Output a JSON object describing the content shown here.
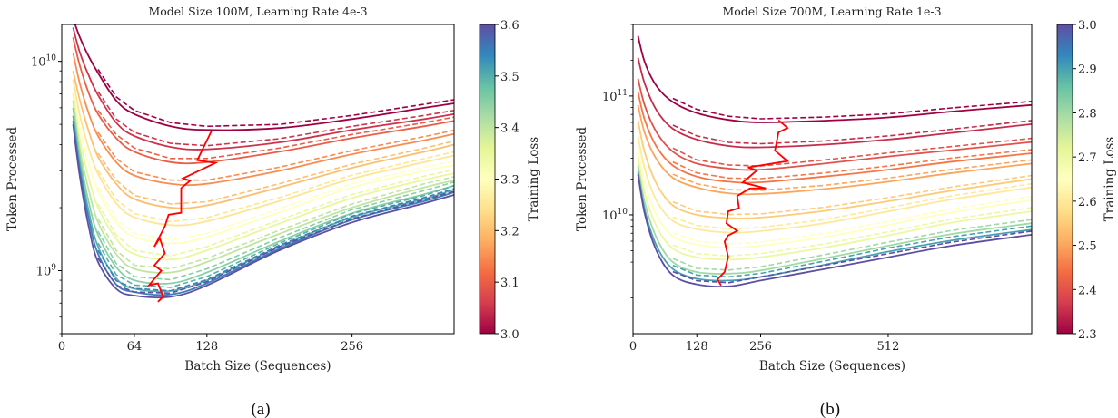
{
  "chart_data": [
    {
      "type": "line",
      "panel_caption": "(a)",
      "title": "Model Size 100M, Learning Rate 4e-3",
      "xlabel": "Batch Size (Sequences)",
      "ylabel": "Token Processed",
      "xlim": [
        0,
        346
      ],
      "ylim": [
        500000000.0,
        15000000000.0
      ],
      "yscale": "log",
      "grid": false,
      "xticks": [
        0,
        64,
        128,
        256
      ],
      "xtick_labels": [
        "0",
        "64",
        "128",
        "256"
      ],
      "yticks": [
        1000000000.0,
        10000000000.0
      ],
      "ytick_labels": [
        {
          "base": "10",
          "exp": "9"
        },
        {
          "base": "10",
          "exp": "10"
        }
      ],
      "colorbar": {
        "label": "Training Loss",
        "colormap": "Spectral",
        "range": [
          3.0,
          3.6
        ],
        "ticks": [
          "3.0",
          "3.1",
          "3.2",
          "3.3",
          "3.4",
          "3.5",
          "3.6"
        ]
      },
      "x": [
        10,
        16,
        24,
        32,
        48,
        64,
        96,
        128,
        192,
        256,
        320,
        346
      ],
      "series": [
        {
          "loss": 3.0,
          "values": [
            16000000000.0,
            13000000000.0,
            10500000000.0,
            8800000000.0,
            6500000000.0,
            5600000000.0,
            4900000000.0,
            4700000000.0,
            4800000000.0,
            5300000000.0,
            6000000000.0,
            6300000000.0
          ]
        },
        {
          "loss": 3.05,
          "values": [
            14500000000.0,
            11000000000.0,
            8500000000.0,
            6900000000.0,
            5100000000.0,
            4400000000.0,
            3900000000.0,
            3800000000.0,
            4100000000.0,
            4700000000.0,
            5300000000.0,
            5600000000.0
          ]
        },
        {
          "loss": 3.1,
          "values": [
            13000000000.0,
            9500000000.0,
            7000000000.0,
            5600000000.0,
            4300000000.0,
            3700000000.0,
            3300000000.0,
            3300000000.0,
            3700000000.0,
            4300000000.0,
            4900000000.0,
            5200000000.0
          ]
        },
        {
          "loss": 3.15,
          "values": [
            11000000000.0,
            7800000000.0,
            5600000000.0,
            4400000000.0,
            3300000000.0,
            2850000000.0,
            2600000000.0,
            2600000000.0,
            3000000000.0,
            3600000000.0,
            4200000000.0,
            4500000000.0
          ]
        },
        {
          "loss": 3.2,
          "values": [
            9000000000.0,
            6500000000.0,
            4600000000.0,
            3500000000.0,
            2600000000.0,
            2200000000.0,
            2000000000.0,
            2050000000.0,
            2500000000.0,
            3100000000.0,
            3700000000.0,
            4000000000.0
          ]
        },
        {
          "loss": 3.25,
          "values": [
            8200000000.0,
            5500000000.0,
            3800000000.0,
            2900000000.0,
            2100000000.0,
            1800000000.0,
            1650000000.0,
            1720000000.0,
            2150000000.0,
            2750000000.0,
            3300000000.0,
            3550000000.0
          ]
        },
        {
          "loss": 3.3,
          "values": [
            7500000000.0,
            4800000000.0,
            3200000000.0,
            2400000000.0,
            1700000000.0,
            1450000000.0,
            1350000000.0,
            1450000000.0,
            1900000000.0,
            2500000000.0,
            3000000000.0,
            3200000000.0
          ]
        },
        {
          "loss": 3.35,
          "values": [
            7000000000.0,
            4200000000.0,
            2750000000.0,
            2000000000.0,
            1420000000.0,
            1200000000.0,
            1130000000.0,
            1250000000.0,
            1680000000.0,
            2220000000.0,
            2720000000.0,
            2920000000.0
          ]
        },
        {
          "loss": 3.4,
          "values": [
            6500000000.0,
            3800000000.0,
            2400000000.0,
            1700000000.0,
            1200000000.0,
            1020000000.0,
            980000000.0,
            1100000000.0,
            1500000000.0,
            2000000000.0,
            2500000000.0,
            2700000000.0
          ]
        },
        {
          "loss": 3.45,
          "values": [
            6000000000.0,
            3500000000.0,
            2100000000.0,
            1480000000.0,
            1040000000.0,
            900000000.0,
            870000000.0,
            980000000.0,
            1380000000.0,
            1880000000.0,
            2320000000.0,
            2550000000.0
          ]
        },
        {
          "loss": 3.5,
          "values": [
            5500000000.0,
            3200000000.0,
            1900000000.0,
            1300000000.0,
            920000000.0,
            820000000.0,
            800000000.0,
            900000000.0,
            1300000000.0,
            1800000000.0,
            2200000000.0,
            2450000000.0
          ]
        },
        {
          "loss": 3.55,
          "values": [
            5200000000.0,
            3000000000.0,
            1750000000.0,
            1200000000.0,
            860000000.0,
            790000000.0,
            770000000.0,
            870000000.0,
            1270000000.0,
            1750000000.0,
            2150000000.0,
            2370000000.0
          ]
        },
        {
          "loss": 3.6,
          "values": [
            5000000000.0,
            2800000000.0,
            1600000000.0,
            1100000000.0,
            820000000.0,
            760000000.0,
            750000000.0,
            850000000.0,
            1250000000.0,
            1700000000.0,
            2100000000.0,
            2300000000.0
          ]
        }
      ],
      "optimal_path": {
        "color": "#ff0000",
        "x": [
          84.8,
          89.5,
          84.8,
          76.8,
          87.9,
          81.6,
          91.0,
          86.3,
          81.6,
          91.0,
          94.2,
          105.3,
          105.3,
          113.2,
          106.9,
          135.4,
          119.5,
          132.0
        ],
        "y": [
          710000000.0,
          750000000.0,
          870000000.0,
          850000000.0,
          1000000000.0,
          1060000000.0,
          1210000000.0,
          1430000000.0,
          1300000000.0,
          1630000000.0,
          1850000000.0,
          1890000000.0,
          2480000000.0,
          2690000000.0,
          2760000000.0,
          3270000000.0,
          3370000000.0,
          4640000000.0
        ]
      }
    },
    {
      "type": "line",
      "panel_caption": "(b)",
      "title": "Model Size 700M, Learning Rate 1e-3",
      "xlabel": "Batch Size (Sequences)",
      "ylabel": "Token Processed",
      "xlim": [
        0,
        800
      ],
      "ylim": [
        1000000000.0,
        400000000000.0
      ],
      "yscale": "log",
      "grid": false,
      "xticks": [
        0,
        128,
        256,
        512
      ],
      "xtick_labels": [
        "0",
        "128",
        "256",
        "512"
      ],
      "yticks": [
        10000000000.0,
        100000000000.0
      ],
      "ytick_labels": [
        {
          "base": "10",
          "exp": "10"
        },
        {
          "base": "10",
          "exp": "11"
        }
      ],
      "colorbar": {
        "label": "Training Loss",
        "colormap": "Spectral",
        "range": [
          2.3,
          3.0
        ],
        "ticks": [
          "2.3",
          "2.4",
          "2.5",
          "2.6",
          "2.7",
          "2.8",
          "2.9",
          "3.0"
        ]
      },
      "x": [
        10,
        24,
        48,
        80,
        128,
        192,
        256,
        384,
        512,
        640,
        800
      ],
      "series": [
        {
          "loss": 2.3,
          "values": [
            320000000000.0,
            190000000000.0,
            120000000000.0,
            89000000000.0,
            72000000000.0,
            63000000000.0,
            60000000000.0,
            62000000000.0,
            66000000000.0,
            74000000000.0,
            84000000000.0
          ]
        },
        {
          "loss": 2.35,
          "values": [
            210000000000.0,
            125000000000.0,
            75000000000.0,
            53000000000.0,
            43000000000.0,
            38000000000.0,
            37000000000.0,
            39000000000.0,
            43000000000.0,
            49000000000.0,
            58000000000.0
          ]
        },
        {
          "loss": 2.4,
          "values": [
            140000000000.0,
            82000000000.0,
            49000000000.0,
            34000000000.0,
            27000000000.0,
            24500000000.0,
            24000000000.0,
            27000000000.0,
            31000000000.0,
            35000000000.0,
            41000000000.0
          ]
        },
        {
          "loss": 2.45,
          "values": [
            108000000000.0,
            62000000000.0,
            37000000000.0,
            26000000000.0,
            21000000000.0,
            19000000000.0,
            18800000000.0,
            21000000000.0,
            24000000000.0,
            28000000000.0,
            33000000000.0
          ]
        },
        {
          "loss": 2.5,
          "values": [
            84000000000.0,
            48000000000.0,
            29000000000.0,
            20500000000.0,
            17000000000.0,
            15200000000.0,
            15000000000.0,
            16500000000.0,
            19000000000.0,
            22500000000.0,
            27000000000.0
          ]
        },
        {
          "loss": 2.55,
          "values": [
            62000000000.0,
            33000000000.0,
            18000000000.0,
            12000000000.0,
            10000000000.0,
            9400000000.0,
            9500000000.0,
            10800000000.0,
            13000000000.0,
            16000000000.0,
            20000000000.0
          ]
        },
        {
          "loss": 2.6,
          "values": [
            46000000000.0,
            24000000000.0,
            13000000000.0,
            8900000000.0,
            7600000000.0,
            7100000000.0,
            7300000000.0,
            8500000000.0,
            10700000000.0,
            13500000000.0,
            17000000000.0
          ]
        },
        {
          "loss": 2.65,
          "values": [
            37000000000.0,
            18500000000.0,
            9800000000.0,
            6600000000.0,
            5600000000.0,
            5300000000.0,
            5500000000.0,
            6500000000.0,
            8200000000.0,
            10500000000.0,
            13300000000.0
          ]
        },
        {
          "loss": 2.7,
          "values": [
            31000000000.0,
            15000000000.0,
            7900000000.0,
            5200000000.0,
            4400000000.0,
            4200000000.0,
            4400000000.0,
            5300000000.0,
            6700000000.0,
            8600000000.0,
            10700000000.0
          ]
        },
        {
          "loss": 2.8,
          "values": [
            26000000000.0,
            12500000000.0,
            6300000000.0,
            4000000000.0,
            3300000000.0,
            3200000000.0,
            3400000000.0,
            4300000000.0,
            5500000000.0,
            6900000000.0,
            8500000000.0
          ]
        },
        {
          "loss": 2.9,
          "values": [
            23000000000.0,
            10800000000.0,
            5400000000.0,
            3500000000.0,
            2900000000.0,
            2800000000.0,
            3000000000.0,
            3800000000.0,
            4900000000.0,
            6100000000.0,
            7500000000.0
          ]
        },
        {
          "loss": 3.0,
          "values": [
            22000000000.0,
            10000000000.0,
            4900000000.0,
            3100000000.0,
            2600000000.0,
            2500000000.0,
            2800000000.0,
            3500000000.0,
            4400000000.0,
            5500000000.0,
            6800000000.0
          ]
        }
      ],
      "optimal_path": {
        "color": "#ff0000",
        "x": [
          176.6,
          169.4,
          183.9,
          191.0,
          183.9,
          191.0,
          209.0,
          187.5,
          191.0,
          212.7,
          209.0,
          234.3,
          266.8,
          219.9,
          248.7,
          230.7,
          310.0,
          284.8,
          292.0,
          310.0,
          292.0
        ],
        "y": [
          2550000000.0,
          2870000000.0,
          3310000000.0,
          4440000000.0,
          5970000000.0,
          6710000000.0,
          7330000000.0,
          8490000000.0,
          10700000000.0,
          11400000000.0,
          14400000000.0,
          16700000000.0,
          16700000000.0,
          18700000000.0,
          23700000000.0,
          25100000000.0,
          28300000000.0,
          34800000000.0,
          49400000000.0,
          54000000000.0,
          62500000000.0
        ]
      }
    }
  ]
}
